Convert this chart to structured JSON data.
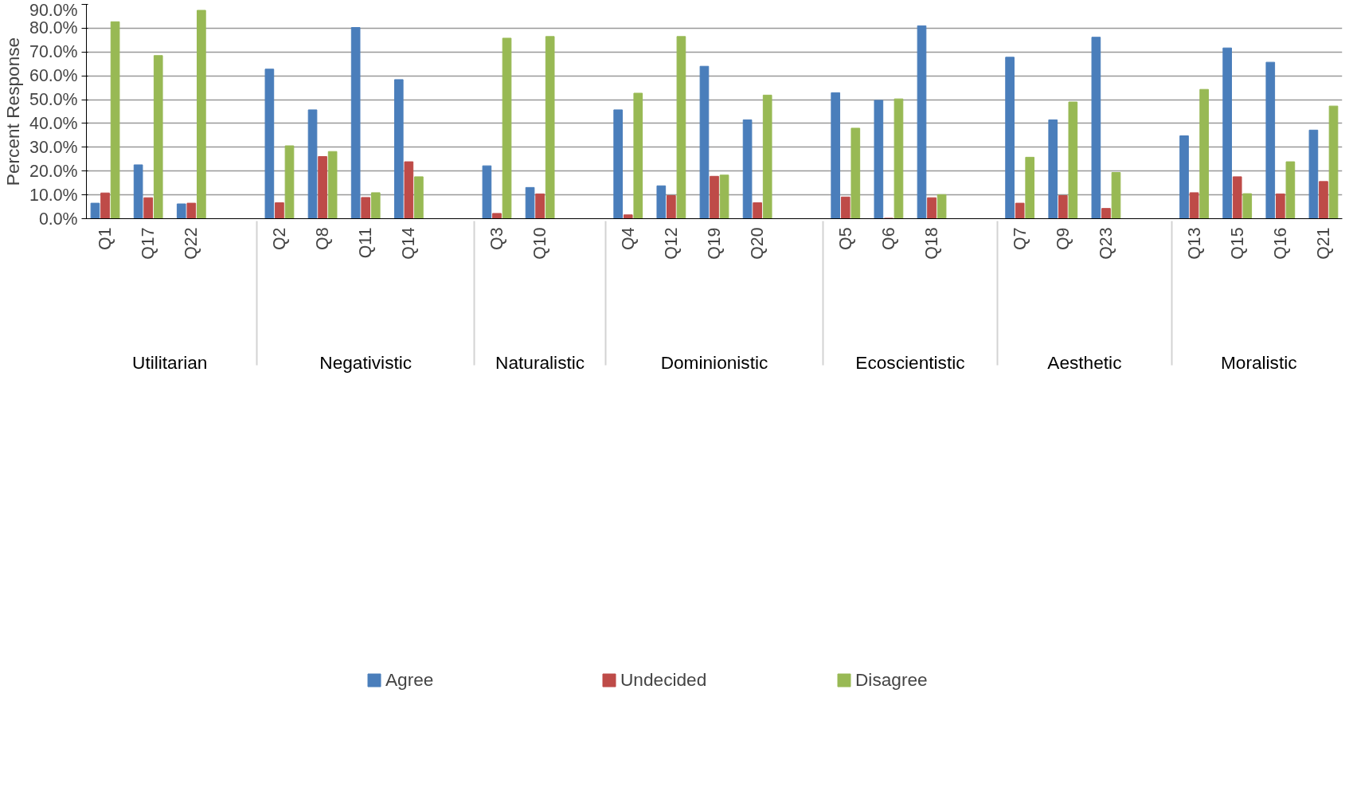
{
  "chart_data": {
    "type": "bar",
    "ylabel": "Percent Response",
    "categories": [
      "Q1",
      "Q17",
      "Q22",
      null,
      "Q2",
      "Q8",
      "Q11",
      "Q14",
      null,
      "Q3",
      "Q10",
      null,
      "Q4",
      "Q12",
      "Q19",
      "Q20",
      null,
      "Q5",
      "Q6",
      "Q18",
      null,
      "Q7",
      "Q9",
      "Q23",
      null,
      "Q13",
      "Q15",
      "Q16",
      "Q21"
    ],
    "annotations": [
      "Utilitarian",
      "Negativistic",
      "Naturalistic",
      "Dominionistic",
      "Ecoscientistic",
      "Aesthetic",
      "Moralistic"
    ],
    "series": [
      {
        "name": "Agree",
        "color": "#4a7ebb",
        "values": [
          6.5,
          22.6,
          6.2,
          null,
          62.8,
          45.7,
          80.3,
          58.4,
          null,
          22.2,
          13.1,
          null,
          45.7,
          13.8,
          64.0,
          41.5,
          null,
          52.9,
          49.7,
          81.0,
          null,
          67.8,
          41.5,
          76.2,
          null,
          34.8,
          71.7,
          65.7,
          37.2
        ]
      },
      {
        "name": "Undecided",
        "color": "#be4b48",
        "values": [
          10.8,
          8.8,
          6.5,
          null,
          6.7,
          26.1,
          8.9,
          23.9,
          null,
          2.2,
          10.4,
          null,
          1.6,
          9.7,
          17.8,
          6.7,
          null,
          9.1,
          0.2,
          8.8,
          null,
          6.5,
          9.7,
          4.3,
          null,
          10.9,
          17.6,
          10.4,
          15.6
        ]
      },
      {
        "name": "Disagree",
        "color": "#98b954",
        "values": [
          82.7,
          68.5,
          87.5,
          null,
          30.6,
          28.2,
          10.9,
          17.6,
          null,
          75.8,
          76.5,
          null,
          52.7,
          76.5,
          18.3,
          51.9,
          null,
          38.0,
          50.3,
          10.1,
          null,
          25.8,
          49.0,
          19.4,
          null,
          54.3,
          10.5,
          23.9,
          47.3
        ]
      }
    ],
    "ylim": [
      0,
      90
    ],
    "yticks": [
      {
        "value": 0,
        "label": "0.0%"
      },
      {
        "value": 10,
        "label": "10.0%"
      },
      {
        "value": 20,
        "label": "20.0%"
      },
      {
        "value": 30,
        "label": "30.0%"
      },
      {
        "value": 40,
        "label": "40.0%"
      },
      {
        "value": 50,
        "label": "50.0%"
      },
      {
        "value": 60,
        "label": "60.0%"
      },
      {
        "value": 70,
        "label": "70.0%"
      },
      {
        "value": 80,
        "label": "80.0%"
      },
      {
        "value": 90,
        "label": "90.0%"
      }
    ],
    "grid": "y",
    "legend": "bottom"
  }
}
